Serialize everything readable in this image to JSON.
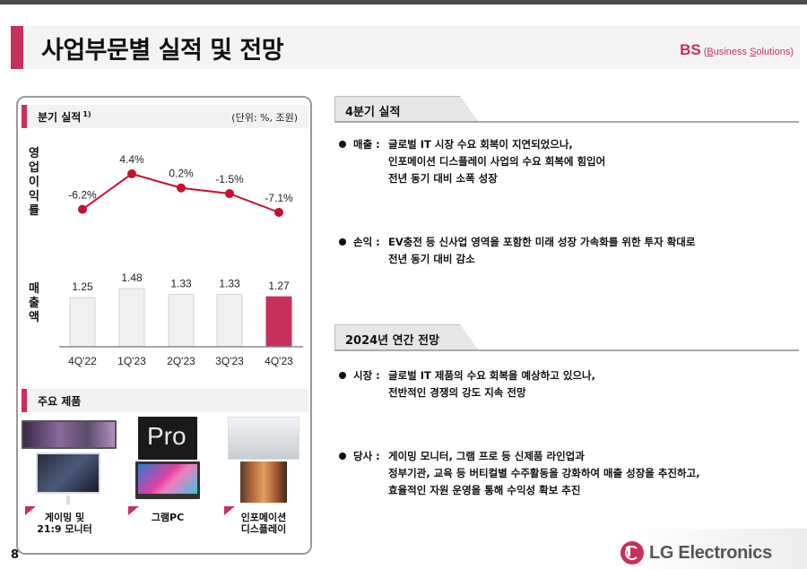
{
  "header": {
    "title": "사업부문별 실적 및 전망",
    "division_abbr": "BS",
    "division_full_open": "(",
    "division_full_b": "B",
    "division_full_mid": "usiness ",
    "division_full_s": "S",
    "division_full_end": "olutions)"
  },
  "left_panel": {
    "quarterly_title": "분기 실적",
    "quarterly_footnote": "1)",
    "unit": "(단위: %, 조원)",
    "op_margin_label": [
      "영",
      "업",
      "이",
      "익",
      "률"
    ],
    "sales_label": [
      "매",
      "출",
      "액"
    ],
    "products_title": "주요 제품",
    "products": [
      {
        "caption_line1": "게이밍 및",
        "caption_line2": "21:9 모니터",
        "image_top": "LG UltraGear monitor",
        "image_bottom": "ultrawide monitor"
      },
      {
        "caption_line1": "그램PC",
        "caption_line2": "",
        "image_top": "gram Pro",
        "image_bottom": "gram laptop"
      },
      {
        "caption_line1": "인포메이션",
        "caption_line2": "디스플레이",
        "image_top": "transparent display",
        "image_bottom": "menu board display"
      }
    ]
  },
  "chart_data": [
    {
      "type": "line",
      "title": "영업이익률",
      "categories": [
        "4Q'22",
        "1Q'23",
        "2Q'23",
        "3Q'23",
        "4Q'23"
      ],
      "values": [
        -6.2,
        4.4,
        0.2,
        -1.5,
        -7.1
      ],
      "labels": [
        "-6.2%",
        "4.4%",
        "0.2%",
        "-1.5%",
        "-7.1%"
      ],
      "unit": "%",
      "color": "#c8102e"
    },
    {
      "type": "bar",
      "title": "매출액",
      "categories": [
        "4Q'22",
        "1Q'23",
        "2Q'23",
        "3Q'23",
        "4Q'23"
      ],
      "values": [
        1.25,
        1.48,
        1.33,
        1.33,
        1.27
      ],
      "labels": [
        "1.25",
        "1.48",
        "1.33",
        "1.33",
        "1.27"
      ],
      "unit": "조원",
      "colors": [
        "#f0f0f0",
        "#f0f0f0",
        "#f0f0f0",
        "#f0f0f0",
        "#c8305c"
      ]
    }
  ],
  "right": {
    "q4_title": "4분기 실적",
    "q4_items": [
      {
        "key": "매출 :",
        "lines": [
          "글로벌 IT 시장 수요 회복이 지연되었으나,",
          "인포메이션 디스플레이 사업의 수요 회복에 힘입어",
          "전년 동기 대비 소폭 성장"
        ]
      },
      {
        "key": "손익 :",
        "lines": [
          "EV충전 등 신사업 영역을 포함한 미래 성장 가속화를 위한 투자 확대로",
          "전년 동기 대비 감소"
        ]
      }
    ],
    "outlook_title": "2024년 연간 전망",
    "outlook_items": [
      {
        "key": "시장 :",
        "lines": [
          "글로벌 IT 제품의 수요 회복을 예상하고 있으나,",
          "전반적인 경쟁의 강도 지속 전망"
        ]
      },
      {
        "key": "당사 :",
        "lines": [
          "게이밍 모니터, 그램 프로 등 신제품 라인업과",
          "정부기관, 교육 등 버티컬별 수주활동을 강화하여 매출 성장을 추진하고,",
          "효율적인 자원 운영을 통해 수익성 확보 추진"
        ]
      }
    ]
  },
  "footer": {
    "page_number": "8",
    "logo_text": "LG Electronics"
  },
  "colors": {
    "accent": "#c8305c",
    "line": "#c8102e"
  }
}
